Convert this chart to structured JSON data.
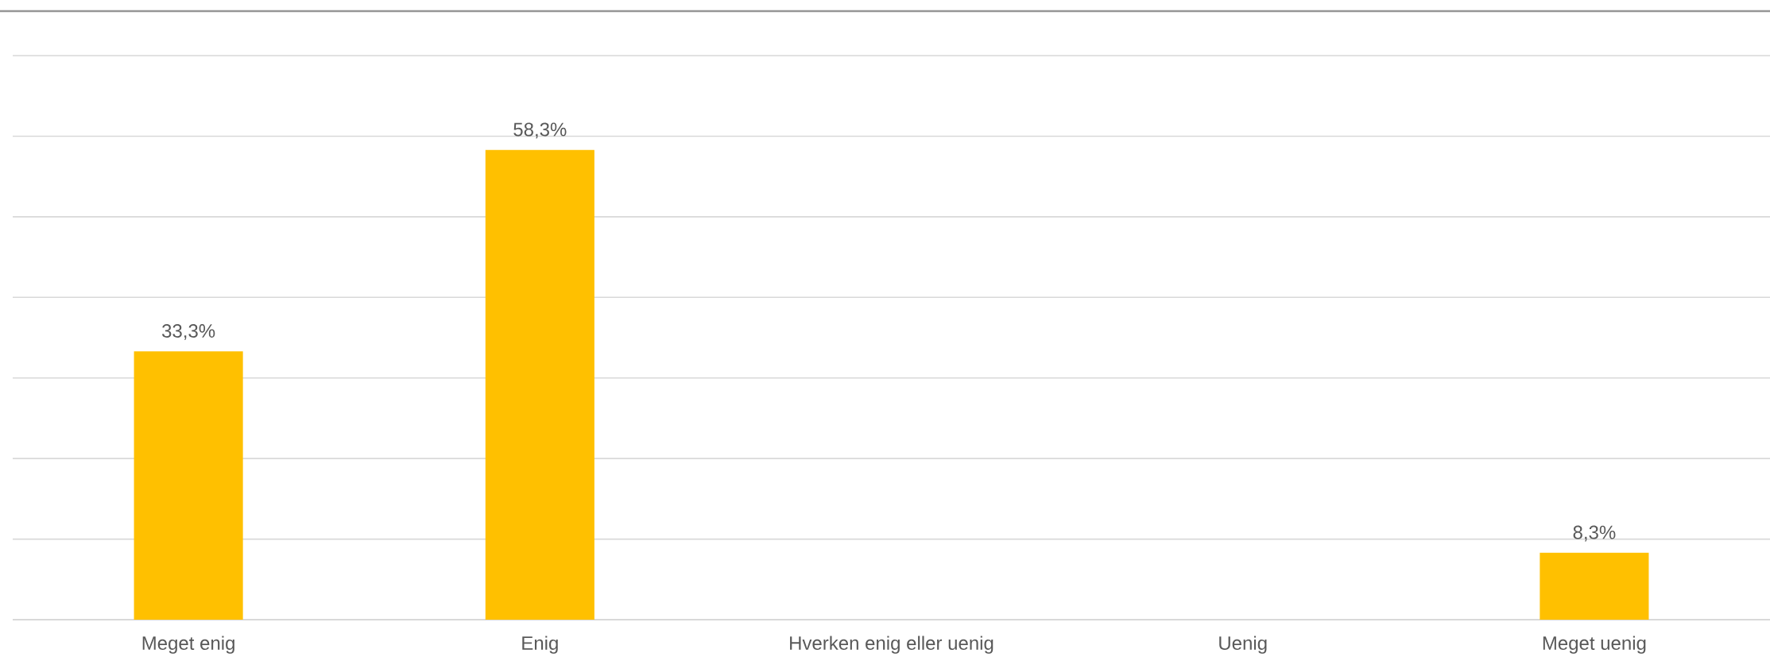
{
  "chart_data": {
    "type": "bar",
    "categories": [
      "Meget enig",
      "Enig",
      "Hverken enig eller uenig",
      "Uenig",
      "Meget uenig"
    ],
    "values": [
      33.3,
      58.3,
      null,
      null,
      8.3
    ],
    "value_labels": [
      "33,3%",
      "58,3%",
      null,
      null,
      "8,3%"
    ],
    "color": "#ffc000",
    "ylim": [
      0,
      70
    ],
    "yticks": [
      {
        "value": 0,
        "label": null
      },
      {
        "value": 10,
        "label": null
      },
      {
        "value": 20,
        "label": null
      },
      {
        "value": 30,
        "label": null
      },
      {
        "value": 40,
        "label": null
      },
      {
        "value": 50,
        "label": null
      },
      {
        "value": 60,
        "label": null
      },
      {
        "value": 70,
        "label": null
      }
    ],
    "grid": "y",
    "tick_labels": "x"
  }
}
